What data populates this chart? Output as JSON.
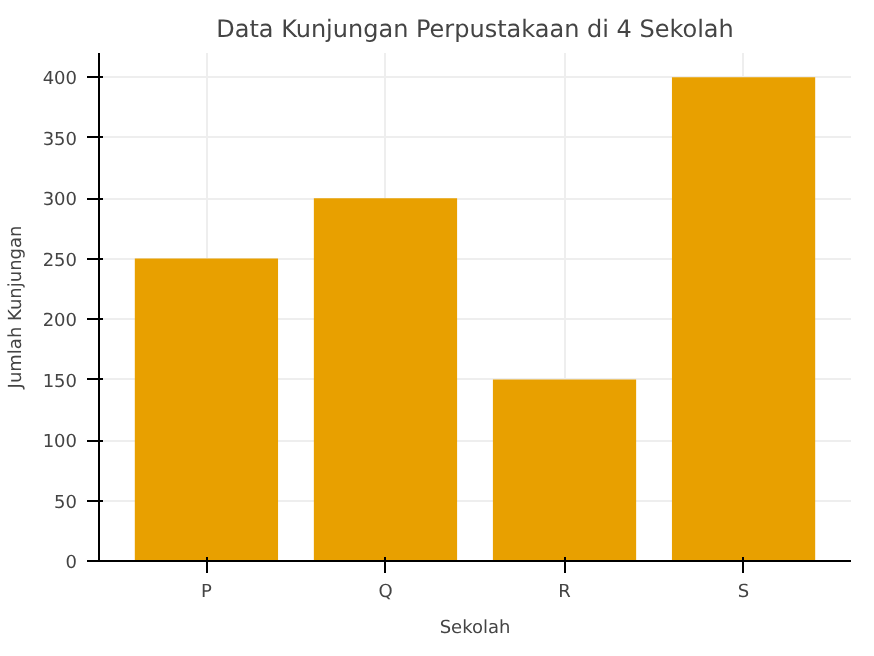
{
  "chart_data": {
    "type": "bar",
    "title": "Data Kunjungan Perpustakaan di 4 Sekolah",
    "xlabel": "Sekolah",
    "ylabel": "Jumlah Kunjungan",
    "categories": [
      "P",
      "Q",
      "R",
      "S"
    ],
    "values": [
      250,
      300,
      150,
      400
    ],
    "color": "#e8a000",
    "ylim": [
      0,
      420
    ],
    "yticks": [
      0,
      50,
      100,
      150,
      200,
      250,
      300,
      350,
      400
    ],
    "grid": true
  }
}
